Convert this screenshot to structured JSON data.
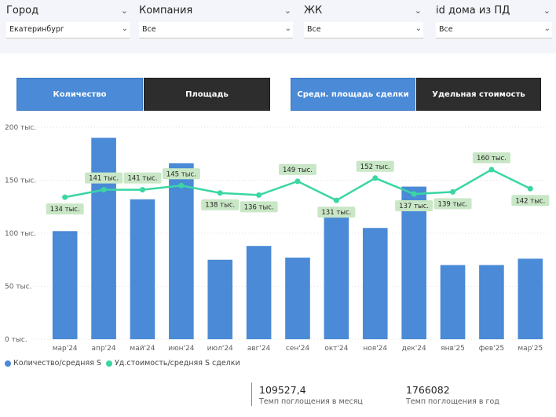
{
  "filters": [
    {
      "title": "Город",
      "value": "Екатеринбург"
    },
    {
      "title": "Компания",
      "value": "Все"
    },
    {
      "title": "ЖК",
      "value": "Все"
    },
    {
      "title": "id дома из ПД",
      "value": "Все"
    }
  ],
  "tabs_left": [
    {
      "label": "Количество",
      "active": true
    },
    {
      "label": "Площадь",
      "active": false
    }
  ],
  "tabs_right": [
    {
      "label": "Средн. площадь сделки",
      "active": true
    },
    {
      "label": "Удельная стоимость",
      "active": false
    }
  ],
  "colors": {
    "bar": "#4a8ad6",
    "line": "#3ad6a4",
    "label_bg": "#c9e7c6",
    "active_tab": "#4a8ad6",
    "inactive_tab": "#2d2d2d"
  },
  "chart_data": {
    "type": "bar",
    "categories": [
      "мар'24",
      "апр'24",
      "май'24",
      "июн'24",
      "июл'24",
      "авг'24",
      "сен'24",
      "окт'24",
      "ноя'24",
      "дек'24",
      "янв'25",
      "фев'25",
      "мар'25"
    ],
    "series": [
      {
        "name": "Количество/средняя S",
        "type": "bar",
        "values": [
          102,
          190,
          132,
          166,
          75,
          88,
          77,
          118,
          105,
          144,
          70,
          70,
          76
        ]
      },
      {
        "name": "Уд.стоимость/средняя S сделки",
        "type": "line",
        "values": [
          134,
          141,
          141,
          145,
          138,
          136,
          149,
          131,
          152,
          137,
          139,
          160,
          142
        ],
        "labels": [
          "134 тыс.",
          "141 тыс.",
          "141 тыс.",
          "145 тыс.",
          "138 тыс.",
          "136 тыс.",
          "149 тыс.",
          "131 тыс.",
          "152 тыс.",
          "137 тыс.",
          "139 тыс.",
          "160 тыс.",
          "142 тыс."
        ]
      }
    ],
    "yticks": [
      {
        "value": 0,
        "label": "0 тыс."
      },
      {
        "value": 50,
        "label": "50 тыс."
      },
      {
        "value": 100,
        "label": "100 тыс."
      },
      {
        "value": 150,
        "label": "150 тыс."
      },
      {
        "value": 200,
        "label": "200 тыс."
      }
    ],
    "ylim": [
      0,
      200
    ],
    "legend": {
      "position": "bottom-left"
    }
  },
  "kpis": [
    {
      "value": "109527,4",
      "label": "Темп поглощения в месяц"
    },
    {
      "value": "1766082",
      "label": "Темп поглощения в год"
    }
  ]
}
